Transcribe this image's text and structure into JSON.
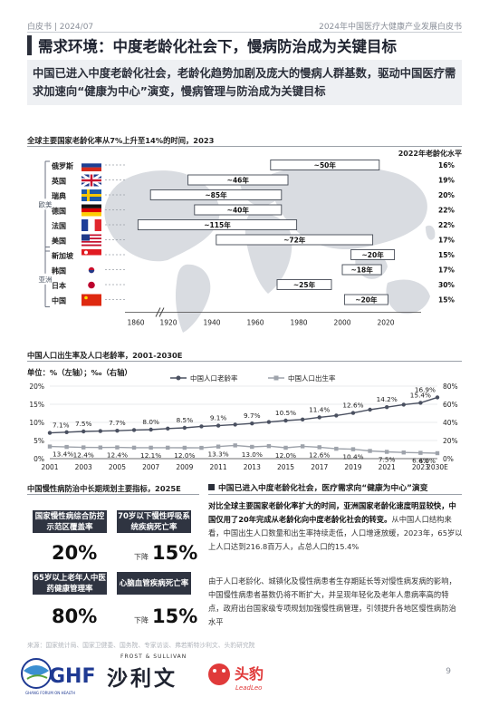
{
  "header": {
    "left": "白皮书 | 2024/07",
    "right": "2024年中国医疗大健康产业发展白皮书"
  },
  "title": "需求环境：中度老龄化社会下，慢病防治成为关键目标",
  "subtitle": "中国已进入中度老龄化社会，老龄化趋势加剧及庞大的慢病人群基数，驱动中国医疗需求加速向“健康为中心”演变，慢病管理与防治成为关键目标",
  "chart_data": [
    {
      "type": "bar",
      "title": "全球主要国家老龄化率从7%上升至14%的时间，2023",
      "right_header": "2022年老龄化水平",
      "groups": [
        {
          "label": "欧美",
          "rows": [
            0,
            5
          ]
        },
        {
          "label": "亚洲",
          "rows": [
            6,
            9
          ]
        }
      ],
      "x_ticks": [
        1860,
        1920,
        1940,
        1960,
        1980,
        2000,
        2020
      ],
      "rows": [
        {
          "country": "俄罗斯",
          "start": 1967,
          "end": 2017,
          "label": "~50年",
          "level": "16%"
        },
        {
          "country": "英国",
          "start": 1929,
          "end": 1975,
          "label": "~46年",
          "level": "19%"
        },
        {
          "country": "瑞典",
          "start": 1887,
          "end": 1972,
          "label": "~85年",
          "level": "20%"
        },
        {
          "country": "德国",
          "start": 1932,
          "end": 1972,
          "label": "~40年",
          "level": "22%"
        },
        {
          "country": "法国",
          "start": 1864,
          "end": 1979,
          "label": "~115年",
          "level": "22%"
        },
        {
          "country": "美国",
          "start": 1942,
          "end": 2014,
          "label": "~72年",
          "level": "17%"
        },
        {
          "country": "新加坡",
          "start": 2004,
          "end": 2024,
          "label": "~20年",
          "level": "15%"
        },
        {
          "country": "韩国",
          "start": 2000,
          "end": 2018,
          "label": "~18年",
          "level": "17%"
        },
        {
          "country": "日本",
          "start": 1970,
          "end": 1995,
          "label": "~25年",
          "level": "30%"
        },
        {
          "country": "中国",
          "start": 2001,
          "end": 2021,
          "label": "~20年",
          "level": "15%"
        }
      ]
    },
    {
      "type": "line",
      "title": "中国人口出生率及人口老龄率，2001-2030E",
      "units": "单位：%（左轴）；‰（右轴）",
      "x": [
        "2001",
        "2002",
        "2003",
        "2004",
        "2005",
        "2006",
        "2007",
        "2008",
        "2009",
        "2010",
        "2011",
        "2012",
        "2013",
        "2014",
        "2015",
        "2016",
        "2017",
        "2018",
        "2019",
        "2020",
        "2021",
        "2022",
        "2023",
        "2030E"
      ],
      "x_tick_labels": [
        "2001",
        "2003",
        "2005",
        "2007",
        "2009",
        "2011",
        "2013",
        "2015",
        "2017",
        "2019",
        "2021",
        "2023",
        "2030E"
      ],
      "ylim_left": [
        0,
        20
      ],
      "yticks_left": [
        "0%",
        "5%",
        "10%",
        "15%",
        "20%"
      ],
      "ylim_right": [
        0,
        80
      ],
      "yticks_right": [
        "0%",
        "20%",
        "40%",
        "60%",
        "80%"
      ],
      "series": [
        {
          "name": "中国人口老龄率",
          "axis": "left",
          "color": "#4a5060",
          "marker": "circle",
          "values": [
            7.1,
            7.3,
            7.5,
            7.6,
            7.7,
            7.9,
            8.0,
            8.3,
            8.5,
            8.9,
            9.1,
            9.4,
            9.7,
            10.1,
            10.5,
            10.8,
            11.4,
            11.9,
            12.6,
            13.5,
            14.2,
            14.9,
            15.4,
            16.9
          ],
          "labels": [
            "7.1%",
            null,
            "7.5%",
            null,
            "7.7%",
            null,
            "8.0%",
            null,
            "8.5%",
            null,
            "9.1%",
            null,
            "9.7%",
            null,
            "10.5%",
            null,
            "11.4%",
            null,
            "12.6%",
            null,
            "14.2%",
            null,
            "15.4%",
            "16.9%"
          ]
        },
        {
          "name": "中国人口出生率",
          "axis": "right",
          "color": "#9ea3ab",
          "marker": "square",
          "values": [
            13.4,
            12.9,
            12.4,
            12.3,
            12.4,
            12.1,
            12.1,
            12.1,
            12.0,
            11.9,
            13.3,
            14.6,
            13.0,
            13.8,
            12.0,
            13.6,
            12.6,
            10.9,
            10.4,
            8.5,
            7.5,
            6.8,
            6.4,
            6.0
          ],
          "labels": [
            "13.4%",
            null,
            "12.4%",
            null,
            "12.4%",
            null,
            "12.1%",
            null,
            "12.0%",
            null,
            "13.3%",
            null,
            "13.0%",
            null,
            "12.0%",
            null,
            "12.6%",
            null,
            "10.4%",
            null,
            "7.5%",
            null,
            "6.4%",
            "6.0%"
          ]
        }
      ]
    }
  ],
  "kpi": {
    "title": "中国慢性病防治中长期规划主要指标，2025E",
    "items": [
      {
        "label": "国家慢性病综合防控示范区覆盖率",
        "prefix": "",
        "value": "20%"
      },
      {
        "label": "70岁以下慢性呼吸系统疾病死亡率",
        "prefix": "下降",
        "value": "15%"
      },
      {
        "label": "65岁以上老年人中医药健康管理率",
        "prefix": "",
        "value": "80%"
      },
      {
        "label": "心脑血管疾病死亡率",
        "prefix": "下降",
        "value": "15%"
      }
    ]
  },
  "right": {
    "heading": "中国已进入中度老龄化社会，医疗需求向“健康为中心”演变",
    "p1_bold": "对比全球主要国家老龄化率扩大的时间，亚洲国家老龄化速度明显较快，中国仅用了20年完成从老龄化向中度老龄化社会的转变。",
    "p1_rest": "从中国人口结构来看，中国出生人口数量和出生率持续走低，人口增速放缓，2023年，65岁以上人口达到216.8百万人，占总人口的15.4%",
    "p2": "由于人口老龄化、城镇化及慢性病患者生存期延长等对慢性病发病的影响，中国慢性病患者基数仍将不断扩大，并呈现年轻化及老年人患病率高的特点，政府出台国家级专项规划加强慢性病管理，引领提升各地区慢性病防治水平"
  },
  "source": "来源：国家统计局、国家卫健委、国务院、专家访谈、弗若斯特沙利文、头豹研究院",
  "footer": {
    "logo1": "GHF",
    "logo1_sub": "GHANG FORUM ON HEALTH",
    "brand2_en": "FROST & SULLIVAN",
    "brand2_cn": "沙利文",
    "brand3_cn": "头豹",
    "brand3_en": "LeadLeo",
    "page": "9"
  },
  "colors": {
    "dark": "#2f3441",
    "bar_fill": "#ffffff",
    "bar_stroke": "#444a55",
    "map": "#d9dce1",
    "grid": "#e3e5e8"
  }
}
